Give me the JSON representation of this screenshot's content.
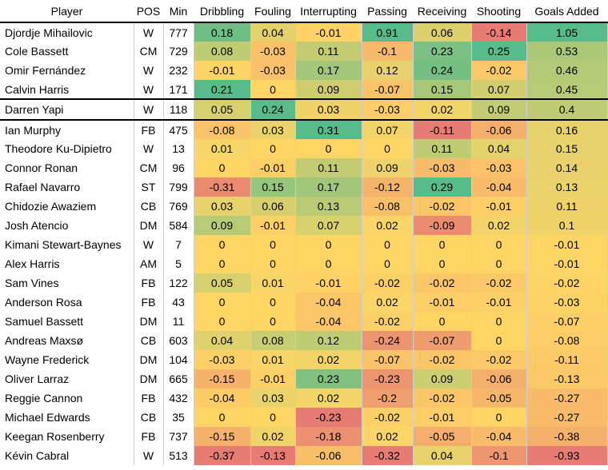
{
  "chart_data": {
    "type": "table",
    "columns": [
      "Player",
      "POS",
      "Min",
      "Dribbling",
      "Fouling",
      "Interrupting",
      "Passing",
      "Receiving",
      "Shooting",
      "Goals Added"
    ],
    "rows": [
      [
        "Djordje Mihailovic",
        "W",
        777,
        0.18,
        0.04,
        -0.01,
        0.91,
        0.06,
        -0.14,
        1.05
      ],
      [
        "Cole Bassett",
        "CM",
        729,
        0.08,
        -0.03,
        0.11,
        -0.1,
        0.23,
        0.25,
        0.53
      ],
      [
        "Omir Fernández",
        "W",
        232,
        -0.01,
        -0.03,
        0.17,
        0.12,
        0.24,
        -0.02,
        0.46
      ],
      [
        "Calvin Harris",
        "W",
        171,
        0.21,
        0,
        0.09,
        -0.07,
        0.15,
        0.07,
        0.45
      ],
      [
        "Darren Yapi",
        "W",
        118,
        0.05,
        0.24,
        0.03,
        -0.03,
        0.02,
        0.09,
        0.4
      ],
      [
        "Ian Murphy",
        "FB",
        475,
        -0.08,
        0.03,
        0.31,
        0.07,
        -0.11,
        -0.06,
        0.16
      ],
      [
        "Theodore Ku-Dipietro",
        "W",
        13,
        0.01,
        0,
        0,
        0,
        0.11,
        0.04,
        0.15
      ],
      [
        "Connor Ronan",
        "CM",
        96,
        0,
        -0.01,
        0.11,
        0.09,
        -0.03,
        -0.03,
        0.14
      ],
      [
        "Rafael Navarro",
        "ST",
        799,
        -0.31,
        0.15,
        0.17,
        -0.12,
        0.29,
        -0.04,
        0.13
      ],
      [
        "Chidozie Awaziem",
        "CB",
        769,
        0.03,
        0.06,
        0.13,
        -0.08,
        -0.02,
        -0.01,
        0.11
      ],
      [
        "Josh Atencio",
        "DM",
        584,
        0.09,
        -0.01,
        0.07,
        0.02,
        -0.09,
        0.02,
        0.1
      ],
      [
        "Kimani Stewart-Baynes",
        "W",
        7,
        0,
        0,
        0,
        0,
        0,
        0,
        -0.01
      ],
      [
        "Alex Harris",
        "AM",
        5,
        0,
        0,
        0,
        0,
        0,
        0,
        -0.01
      ],
      [
        "Sam Vines",
        "FB",
        122,
        0.05,
        0.01,
        -0.01,
        -0.02,
        -0.02,
        -0.02,
        -0.02
      ],
      [
        "Anderson Rosa",
        "FB",
        43,
        0,
        0,
        -0.04,
        0.02,
        -0.01,
        -0.01,
        -0.03
      ],
      [
        "Samuel Bassett",
        "DM",
        11,
        0,
        0,
        -0.04,
        -0.02,
        0,
        0,
        -0.07
      ],
      [
        "Andreas Maxsø",
        "CB",
        603,
        0.04,
        0.08,
        0.12,
        -0.24,
        -0.07,
        0,
        -0.08
      ],
      [
        "Wayne Frederick",
        "DM",
        104,
        -0.03,
        0.01,
        0.02,
        -0.07,
        -0.02,
        -0.02,
        -0.11
      ],
      [
        "Oliver Larraz",
        "DM",
        665,
        -0.15,
        -0.01,
        0.23,
        -0.23,
        0.09,
        -0.06,
        -0.13
      ],
      [
        "Reggie Cannon",
        "FB",
        432,
        -0.04,
        0.03,
        0.02,
        -0.2,
        -0.02,
        -0.05,
        -0.27
      ],
      [
        "Michael Edwards",
        "CB",
        35,
        0,
        0,
        -0.23,
        -0.02,
        -0.01,
        0,
        -0.27
      ],
      [
        "Keegan Rosenberry",
        "FB",
        737,
        -0.15,
        0.02,
        -0.18,
        0.02,
        -0.05,
        -0.04,
        -0.38
      ],
      [
        "Kévin Cabral",
        "W",
        513,
        -0.37,
        -0.13,
        -0.06,
        -0.32,
        0.04,
        -0.1,
        -0.93
      ]
    ],
    "color_scale": {
      "red": "#e67c73",
      "yellow": "#ffd666",
      "green": "#57bb8a"
    }
  }
}
